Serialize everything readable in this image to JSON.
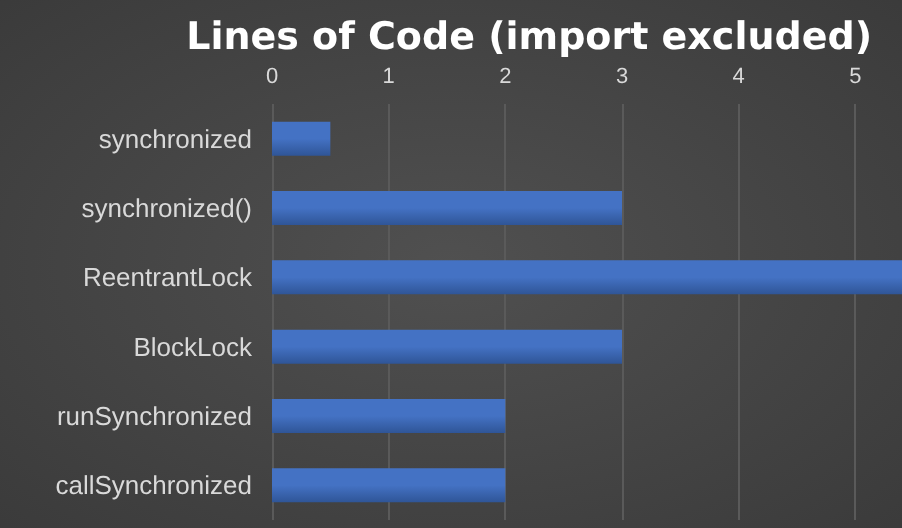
{
  "chart_data": {
    "type": "bar",
    "orientation": "horizontal",
    "title": "Lines of Code (import excluded)",
    "categories": [
      "synchronized",
      "synchronized()",
      "ReentrantLock",
      "BlockLock",
      "runSynchronized",
      "callSynchronized"
    ],
    "values": [
      0.5,
      3,
      5.4,
      3,
      2,
      2
    ],
    "color": "#4472c4",
    "xlim": [
      0,
      5.4
    ],
    "xticks": [
      0,
      1,
      2,
      3,
      4,
      5
    ],
    "grid": "x"
  }
}
